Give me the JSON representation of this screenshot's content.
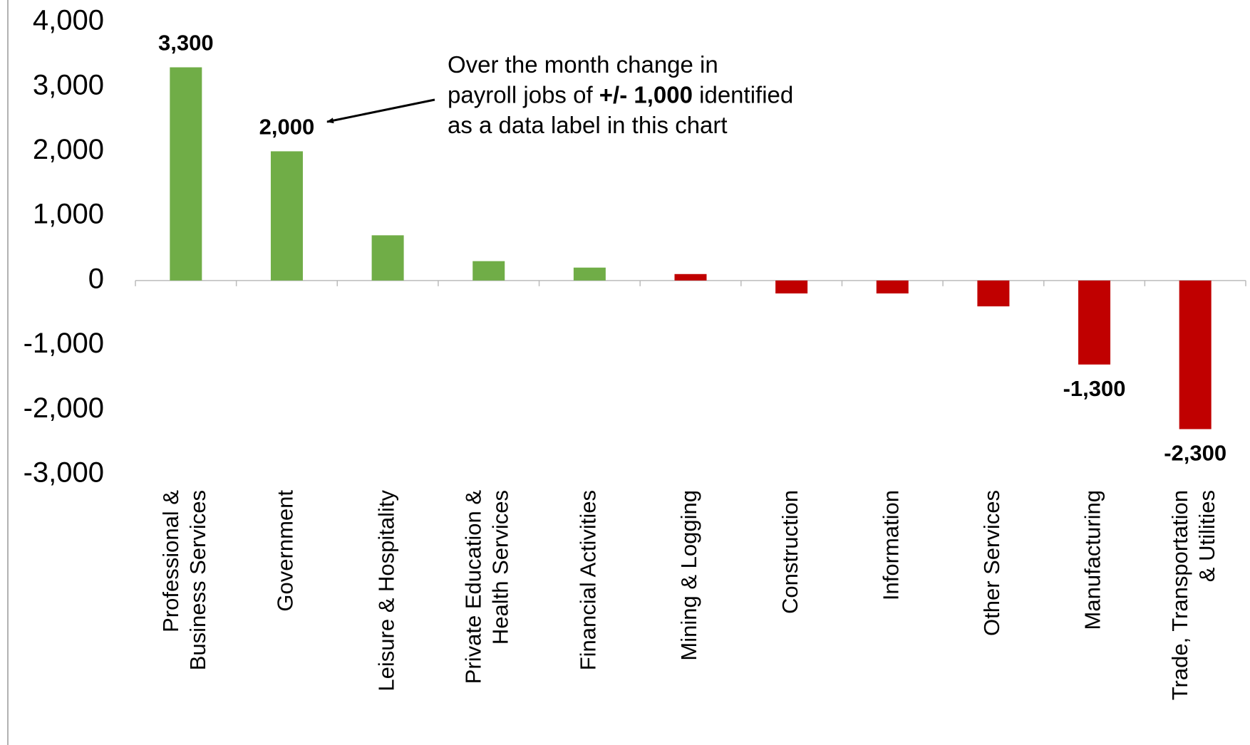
{
  "chart_data": {
    "type": "bar",
    "categories": [
      "Professional &\nBusiness Services",
      "Government",
      "Leisure & Hospitality",
      "Private Education &\nHealth Services",
      "Financial Activities",
      "Mining & Logging",
      "Construction",
      "Information",
      "Other Services",
      "Manufacturing",
      "Trade, Transportation\n& Utilities"
    ],
    "values": [
      3300,
      2000,
      700,
      300,
      200,
      100,
      -200,
      -200,
      -400,
      -1300,
      -2300
    ],
    "value_labels": [
      "3,300",
      "2,000",
      null,
      null,
      null,
      null,
      null,
      null,
      null,
      "-1,300",
      "-2,300"
    ],
    "colors": [
      "#70ad47",
      "#70ad47",
      "#70ad47",
      "#70ad47",
      "#70ad47",
      "#c00000",
      "#c00000",
      "#c00000",
      "#c00000",
      "#c00000",
      "#c00000"
    ],
    "ylim": [
      -3000,
      4000
    ],
    "yticks": [
      {
        "value": 4000,
        "label": "4,000"
      },
      {
        "value": 3000,
        "label": "3,000"
      },
      {
        "value": 2000,
        "label": "2,000"
      },
      {
        "value": 1000,
        "label": "1,000"
      },
      0,
      {
        "value": -1000,
        "label": "-1,000"
      },
      {
        "value": -2000,
        "label": "-2,000"
      },
      {
        "value": -3000,
        "label": "-3,000"
      }
    ],
    "grid": false,
    "annotation": [
      [
        {
          "text": "Over the month change in",
          "bold": false
        }
      ],
      [
        {
          "text": "payroll jobs of ",
          "bold": false
        },
        {
          "text": "+/- 1,000",
          "bold": true
        },
        {
          "text": " identified",
          "bold": false
        }
      ],
      [
        {
          "text": "as a data label in this chart",
          "bold": false
        }
      ]
    ]
  }
}
